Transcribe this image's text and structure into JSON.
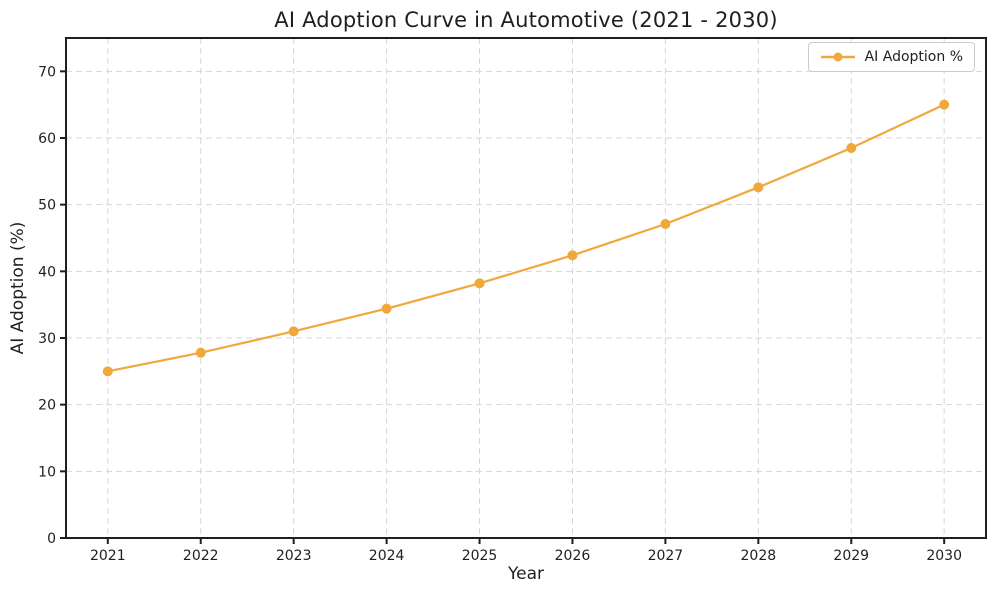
{
  "chart_data": {
    "type": "line",
    "title": "AI Adoption Curve in Automotive (2021 - 2030)",
    "xlabel": "Year",
    "ylabel": "AI Adoption (%)",
    "x": [
      2021,
      2022,
      2023,
      2024,
      2025,
      2026,
      2027,
      2028,
      2029,
      2030
    ],
    "series": [
      {
        "name": "AI Adoption %",
        "values": [
          25.0,
          27.8,
          31.0,
          34.4,
          38.2,
          42.4,
          47.1,
          52.6,
          58.5,
          65.0
        ],
        "color": "#F0A83C",
        "marker": "circle",
        "line_width": 2.2,
        "marker_radius": 5
      }
    ],
    "xlim": [
      2020.55,
      2030.45
    ],
    "ylim": [
      0,
      75
    ],
    "yticks": [
      0,
      10,
      20,
      30,
      40,
      50,
      60,
      70
    ],
    "grid": true,
    "grid_style": "dashed",
    "legend_position": "upper right"
  },
  "legend": {
    "items": [
      {
        "label": "AI Adoption %"
      }
    ]
  },
  "colors": {
    "background": "#ffffff",
    "accent": "#F0A83C",
    "text": "#1f1f1f",
    "grid": "#d6d6d6",
    "spine": "#1f1f1f",
    "legend_border": "#cccccc"
  }
}
